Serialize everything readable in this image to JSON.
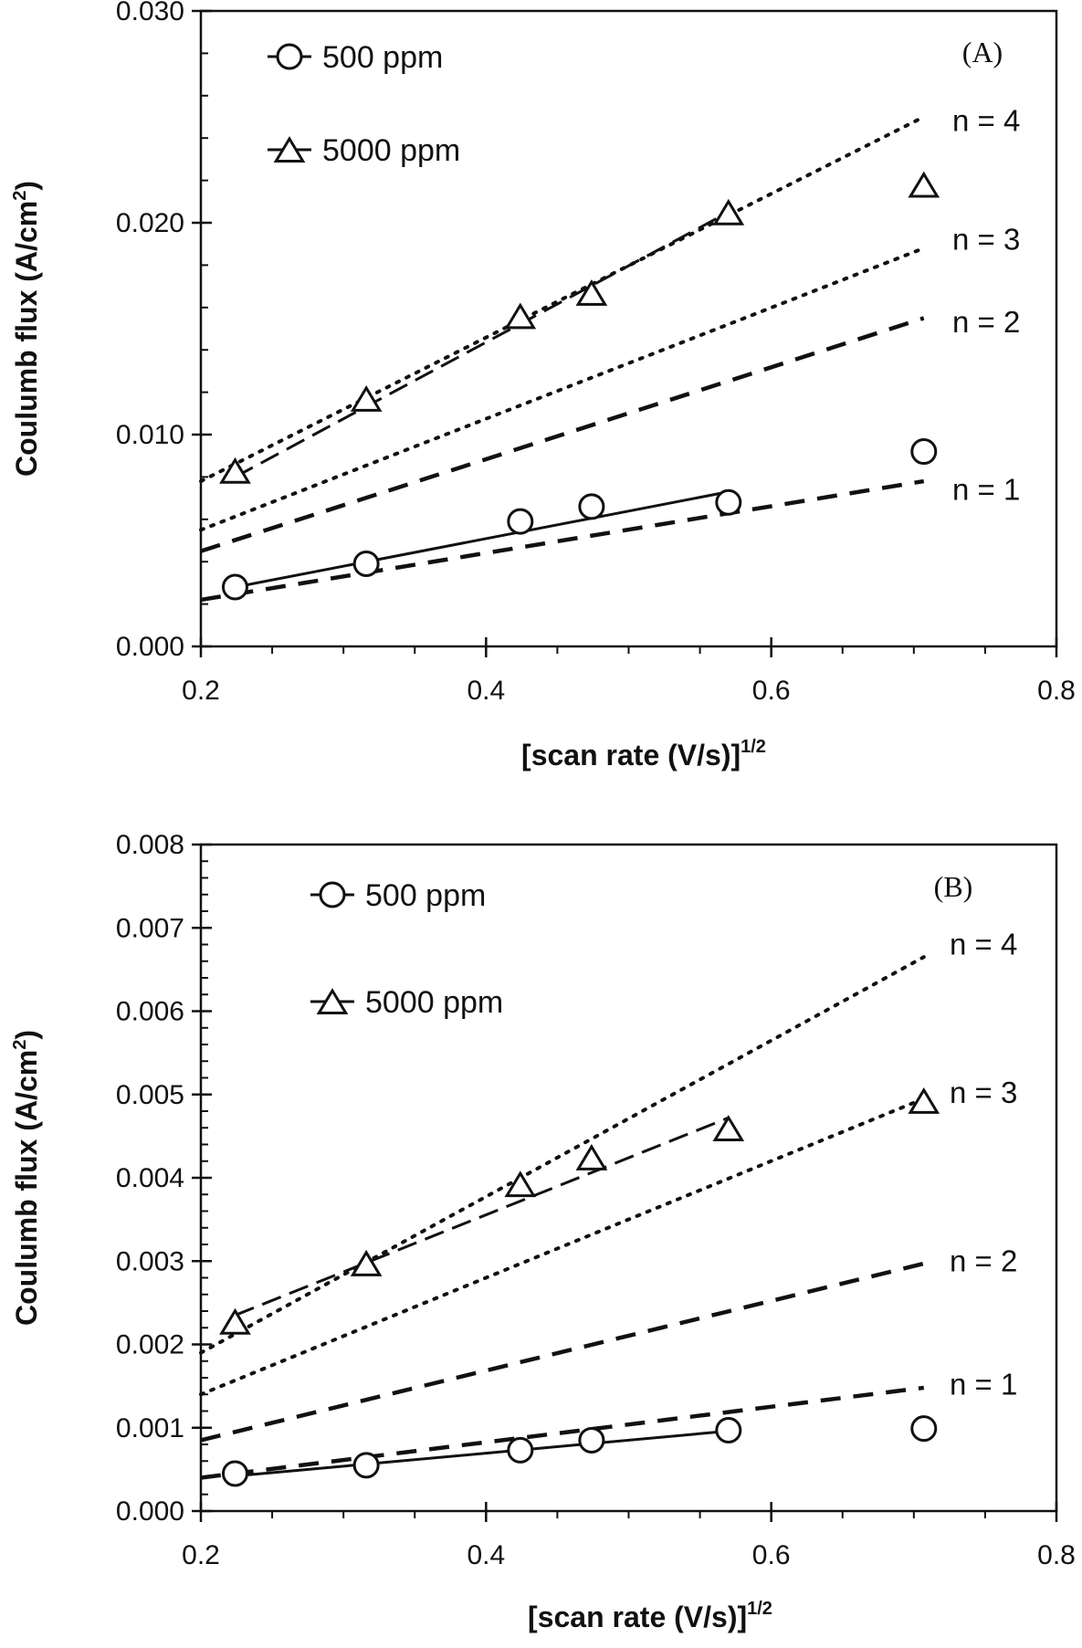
{
  "chart_data": [
    {
      "type": "scatter",
      "panel_label": "(A)",
      "xlabel": "[scan rate (V/s)]",
      "xlabel_sup": "1/2",
      "ylabel": "Coulumb flux (A/cm",
      "ylabel_sup": "2",
      "ylabel_close": ")",
      "xlim": [
        0.2,
        0.8
      ],
      "ylim": [
        0.0,
        0.03
      ],
      "x_ticks": [
        "0.2",
        "0.4",
        "0.6",
        "0.8"
      ],
      "x_tick_values": [
        0.2,
        0.4,
        0.6,
        0.8
      ],
      "y_ticks": [
        "0.000",
        "0.010",
        "0.020",
        "0.030"
      ],
      "y_tick_values": [
        0.0,
        0.01,
        0.02,
        0.03
      ],
      "y_minor_step": 0.002,
      "x_minor_step": 0.05,
      "series": [
        {
          "name": "500 ppm",
          "marker": "circle",
          "x": [
            0.224,
            0.316,
            0.424,
            0.474,
            0.57,
            0.707
          ],
          "y": [
            0.0028,
            0.0039,
            0.0059,
            0.0066,
            0.0068,
            0.0092
          ]
        },
        {
          "name": "5000 ppm",
          "marker": "triangle",
          "x": [
            0.224,
            0.316,
            0.424,
            0.474,
            0.57,
            0.707
          ],
          "y": [
            0.0082,
            0.0116,
            0.0155,
            0.0166,
            0.0204,
            0.0217
          ]
        }
      ],
      "fit_lines": [
        {
          "series": "500 ppm",
          "style": "solid",
          "x": [
            0.224,
            0.57
          ],
          "y": [
            0.0028,
            0.0073
          ]
        },
        {
          "series": "5000 ppm",
          "style": "longdash",
          "x": [
            0.224,
            0.57
          ],
          "y": [
            0.008,
            0.0205
          ]
        }
      ],
      "model_lines": [
        {
          "label": "n = 1",
          "style": "dashed",
          "x": [
            0.2,
            0.707
          ],
          "y": [
            0.0022,
            0.0078
          ],
          "label_y": 0.0074
        },
        {
          "label": "n = 2",
          "style": "dashed",
          "x": [
            0.2,
            0.707
          ],
          "y": [
            0.0045,
            0.0155
          ],
          "label_y": 0.0153
        },
        {
          "label": "n = 3",
          "style": "dotted",
          "x": [
            0.2,
            0.707
          ],
          "y": [
            0.0055,
            0.0188
          ],
          "label_y": 0.0192
        },
        {
          "label": "n = 4",
          "style": "dotted",
          "x": [
            0.2,
            0.707
          ],
          "y": [
            0.0078,
            0.025
          ],
          "label_y": 0.0248
        }
      ]
    },
    {
      "type": "scatter",
      "panel_label": "(B)",
      "xlabel": "[scan rate (V/s)]",
      "xlabel_sup": "1/2",
      "ylabel": "Coulumb flux (A/cm",
      "ylabel_sup": "2",
      "ylabel_close": ")",
      "xlim": [
        0.2,
        0.8
      ],
      "ylim": [
        0.0,
        0.008
      ],
      "x_ticks": [
        "0.2",
        "0.4",
        "0.6",
        "0.8"
      ],
      "x_tick_values": [
        0.2,
        0.4,
        0.6,
        0.8
      ],
      "y_ticks": [
        "0.000",
        "0.001",
        "0.002",
        "0.003",
        "0.004",
        "0.005",
        "0.006",
        "0.007",
        "0.008"
      ],
      "y_tick_values": [
        0.0,
        0.001,
        0.002,
        0.003,
        0.004,
        0.005,
        0.006,
        0.007,
        0.008
      ],
      "y_minor_step": 0.0002,
      "x_minor_step": 0.05,
      "series": [
        {
          "name": "500 ppm",
          "marker": "circle",
          "x": [
            0.224,
            0.316,
            0.424,
            0.474,
            0.57,
            0.707
          ],
          "y": [
            0.00045,
            0.00055,
            0.00073,
            0.00085,
            0.00097,
            0.00099
          ]
        },
        {
          "name": "5000 ppm",
          "marker": "triangle",
          "x": [
            0.224,
            0.316,
            0.424,
            0.474,
            0.57,
            0.707
          ],
          "y": [
            0.00225,
            0.00295,
            0.0039,
            0.00422,
            0.00457,
            0.0049
          ]
        }
      ],
      "fit_lines": [
        {
          "series": "500 ppm",
          "style": "solid",
          "x": [
            0.224,
            0.57
          ],
          "y": [
            0.00042,
            0.00096
          ]
        },
        {
          "series": "5000 ppm",
          "style": "longdash",
          "x": [
            0.224,
            0.57
          ],
          "y": [
            0.00235,
            0.00472
          ]
        }
      ],
      "model_lines": [
        {
          "label": "n = 1",
          "style": "dashed",
          "x": [
            0.2,
            0.707
          ],
          "y": [
            0.0004,
            0.00148
          ],
          "label_y": 0.00152
        },
        {
          "label": "n = 2",
          "style": "dashed",
          "x": [
            0.2,
            0.707
          ],
          "y": [
            0.00085,
            0.00297
          ],
          "label_y": 0.003
        },
        {
          "label": "n = 3",
          "style": "dotted",
          "x": [
            0.2,
            0.707
          ],
          "y": [
            0.0014,
            0.00495
          ],
          "label_y": 0.00502
        },
        {
          "label": "n = 4",
          "style": "dotted",
          "x": [
            0.2,
            0.707
          ],
          "y": [
            0.0019,
            0.00665
          ],
          "label_y": 0.0068
        }
      ]
    }
  ]
}
